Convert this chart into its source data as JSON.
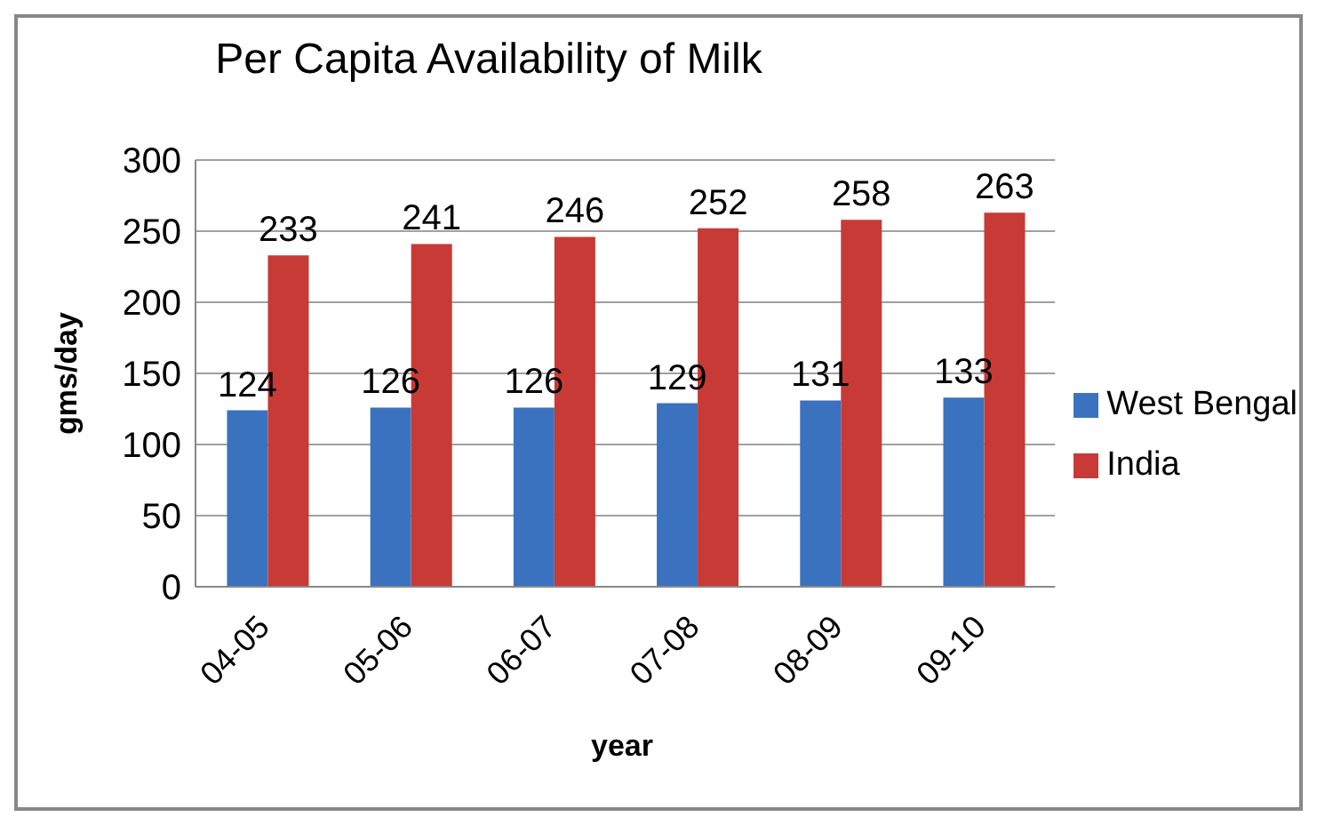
{
  "chart_data": {
    "type": "bar",
    "title": "Per Capita Availability of Milk",
    "xlabel": "year",
    "ylabel": "gms/day",
    "categories": [
      "04-05",
      "05-06",
      "06-07",
      "07-08",
      "08-09",
      "09-10"
    ],
    "series": [
      {
        "name": "West Bengal",
        "color": "#3a72c0",
        "values": [
          124,
          126,
          126,
          129,
          131,
          133
        ]
      },
      {
        "name": "India",
        "color": "#c83a36",
        "values": [
          233,
          241,
          246,
          252,
          258,
          263
        ]
      }
    ],
    "ylim": [
      0,
      300
    ],
    "yticks": [
      0,
      50,
      100,
      150,
      200,
      250,
      300
    ],
    "grid": "y",
    "legend": "right",
    "data_labels": true
  }
}
